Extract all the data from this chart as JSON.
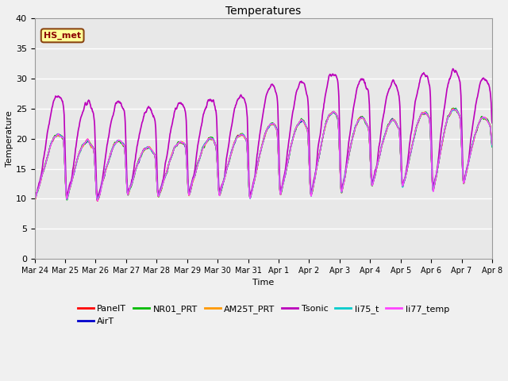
{
  "title": "Temperatures",
  "xlabel": "Time",
  "ylabel": "Temperature",
  "ylim": [
    0,
    40
  ],
  "yticks": [
    0,
    5,
    10,
    15,
    20,
    25,
    30,
    35,
    40
  ],
  "plot_bg_color": "#e8e8e8",
  "figure_color": "#f0f0f0",
  "annotation_text": "HS_met",
  "annotation_bg": "#ffff99",
  "annotation_border": "#8B4513",
  "annotation_text_color": "#8B0000",
  "series": {
    "PanelT": {
      "color": "#ff0000",
      "lw": 1.0
    },
    "AirT": {
      "color": "#0000cc",
      "lw": 1.0
    },
    "NR01_PRT": {
      "color": "#00bb00",
      "lw": 1.0
    },
    "AM25T_PRT": {
      "color": "#ff9900",
      "lw": 1.0
    },
    "Tsonic": {
      "color": "#bb00bb",
      "lw": 1.2
    },
    "li75_t": {
      "color": "#00cccc",
      "lw": 1.0
    },
    "li77_temp": {
      "color": "#ff44ff",
      "lw": 1.0
    }
  },
  "xtick_labels": [
    "Mar 24",
    "Mar 25",
    "Mar 26",
    "Mar 27",
    "Mar 28",
    "Mar 29",
    "Mar 30",
    "Mar 31",
    "Apr 1",
    "Apr 2",
    "Apr 3",
    "Apr 4",
    "Apr 5",
    "Apr 6",
    "Apr 7",
    "Apr 8"
  ]
}
